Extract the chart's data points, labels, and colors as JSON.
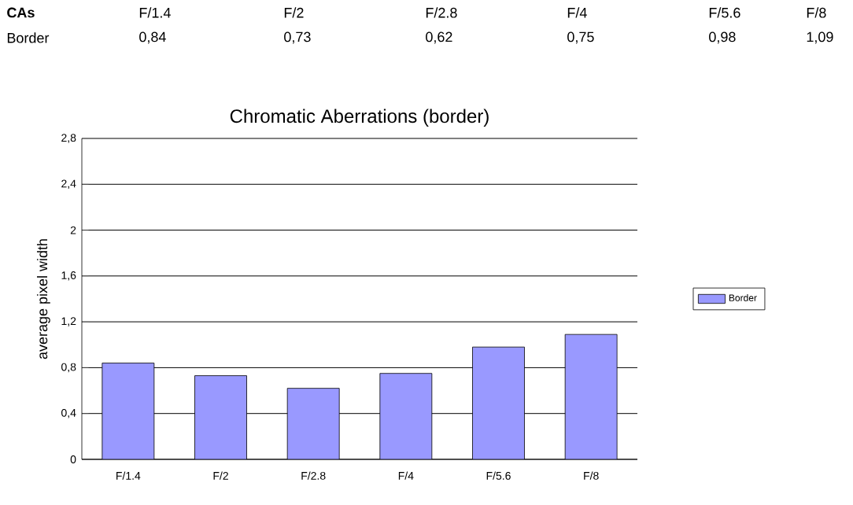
{
  "chart_data": {
    "type": "bar",
    "title": "Chromatic Aberrations (border)",
    "ylabel": "average pixel width",
    "categories": [
      "F/1.4",
      "F/2",
      "F/2.8",
      "F/4",
      "F/5.6",
      "F/8"
    ],
    "series": [
      {
        "name": "Border",
        "color": "#9999ff",
        "values": [
          0.84,
          0.73,
          0.62,
          0.75,
          0.98,
          1.09
        ]
      }
    ],
    "annotations": [
      "**CAs**",
      "0,84",
      "0,73",
      "0,62",
      "0,75",
      "0,98",
      "1,09"
    ],
    "ylim": [
      0,
      2.8
    ],
    "yticks": [
      {
        "value": 0,
        "label": "0"
      },
      {
        "value": 0.4,
        "label": "0,4"
      },
      {
        "value": 0.8,
        "label": "0,8"
      },
      {
        "value": 1.2,
        "label": "1,2"
      },
      {
        "value": 1.6,
        "label": "1,6"
      },
      {
        "value": 2,
        "label": "2"
      },
      {
        "value": 2.4,
        "label": "2,4"
      },
      {
        "value": 2.8,
        "label": "2,8"
      }
    ],
    "grid": "y",
    "legend": "right"
  }
}
